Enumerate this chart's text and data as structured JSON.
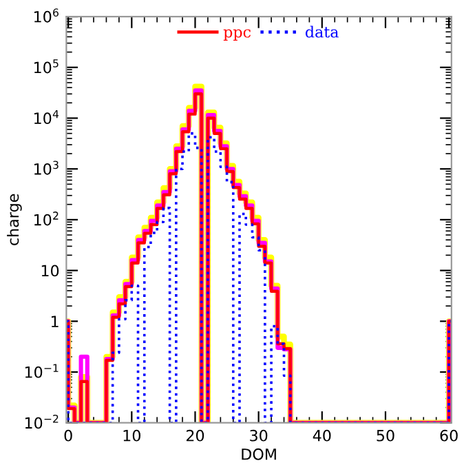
{
  "chart_data": {
    "type": "histogram",
    "xlabel": "DOM",
    "ylabel": "charge",
    "bins": [
      -1,
      0,
      1,
      2,
      3,
      4,
      5,
      6,
      7,
      8,
      9,
      10,
      11,
      12,
      13,
      14,
      15,
      16,
      17,
      18,
      19,
      20,
      21,
      22,
      23,
      24,
      25,
      26,
      27,
      28,
      29,
      30,
      31,
      32,
      33,
      34,
      35,
      36,
      37,
      38,
      39,
      40,
      41,
      42,
      43,
      44,
      45,
      46,
      47,
      48,
      49,
      50,
      51,
      52,
      53,
      54,
      55,
      56,
      57,
      58,
      59,
      60,
      61
    ],
    "series": [
      {
        "color": "#ffff00",
        "line_style": "solid",
        "values": [
          1,
          0.022,
          null,
          0.08,
          null,
          null,
          null,
          0.2,
          1.5,
          3,
          6,
          18,
          45,
          70,
          110,
          220,
          420,
          1000,
          2800,
          7000,
          16000,
          42000,
          null,
          13000,
          6500,
          3200,
          1150,
          560,
          330,
          220,
          110,
          40,
          18,
          5,
          0.5,
          0.35,
          null,
          null,
          null,
          null,
          null,
          null,
          null,
          null,
          null,
          null,
          null,
          null,
          null,
          null,
          null,
          null,
          null,
          null,
          null,
          null,
          null,
          null,
          null,
          null,
          null,
          1
        ]
      },
      {
        "color": "#ff00ff",
        "line_style": "solid",
        "values": [
          1,
          0.02,
          null,
          0.2,
          null,
          null,
          null,
          0.18,
          1.3,
          2.6,
          5.4,
          16,
          40,
          60,
          95,
          190,
          350,
          900,
          2500,
          6000,
          14000,
          35000,
          null,
          11500,
          5600,
          2800,
          1000,
          480,
          290,
          190,
          95,
          35,
          15,
          4.4,
          0.3,
          0.28,
          null,
          null,
          null,
          null,
          null,
          null,
          null,
          null,
          null,
          null,
          null,
          null,
          null,
          null,
          null,
          null,
          null,
          null,
          null,
          null,
          null,
          null,
          null,
          null,
          null,
          1
        ]
      },
      {
        "name": "ppc",
        "color": "#ff0000",
        "line_style": "solid",
        "values": [
          1,
          0.019,
          null,
          0.065,
          null,
          null,
          null,
          0.17,
          1.2,
          2.2,
          4.8,
          14,
          35,
          54,
          80,
          167,
          310,
          800,
          2200,
          5400,
          12000,
          30000,
          null,
          10000,
          5000,
          2500,
          890,
          430,
          255,
          167,
          83,
          30,
          14,
          3.9,
          0.36,
          0.29,
          null,
          null,
          null,
          null,
          null,
          null,
          null,
          null,
          null,
          null,
          null,
          null,
          null,
          null,
          null,
          null,
          null,
          null,
          null,
          null,
          null,
          null,
          null,
          null,
          null,
          1
        ]
      },
      {
        "name": "data",
        "color": "#0000ff",
        "line_style": "dotted",
        "values": [
          1,
          null,
          null,
          null,
          null,
          null,
          null,
          null,
          0.24,
          1.1,
          2.6,
          5,
          null,
          29,
          55,
          90,
          170,
          null,
          1000,
          2200,
          5000,
          2600,
          null,
          4200,
          2200,
          1100,
          550,
          null,
          130,
          80,
          45,
          25,
          null,
          0.8,
          0.36,
          0.085,
          null,
          null,
          null,
          null,
          null,
          null,
          null,
          null,
          null,
          null,
          null,
          null,
          null,
          null,
          null,
          null,
          null,
          null,
          null,
          null,
          null,
          null,
          null,
          null,
          null,
          1
        ]
      }
    ],
    "log": "y",
    "xlim": [
      -0.3,
      60.4
    ],
    "ylim": [
      0.01,
      1000000
    ],
    "xticks": [
      0,
      10,
      20,
      30,
      40,
      50,
      60
    ],
    "yticks": [
      {
        "value": 0.01,
        "label": "10$^{−2}$"
      },
      {
        "value": 0.1,
        "label": "10$^{−1}$"
      },
      1,
      10,
      {
        "value": 100,
        "label": "10$^{2}$"
      },
      {
        "value": 1000,
        "label": "10$^{3}$"
      },
      {
        "value": 10000,
        "label": "10$^{4}$"
      },
      {
        "value": 100000,
        "label": "10$^{5}$"
      },
      {
        "value": 1000000,
        "label": "10$^{6}$"
      }
    ],
    "grid": false,
    "legend": "top"
  }
}
